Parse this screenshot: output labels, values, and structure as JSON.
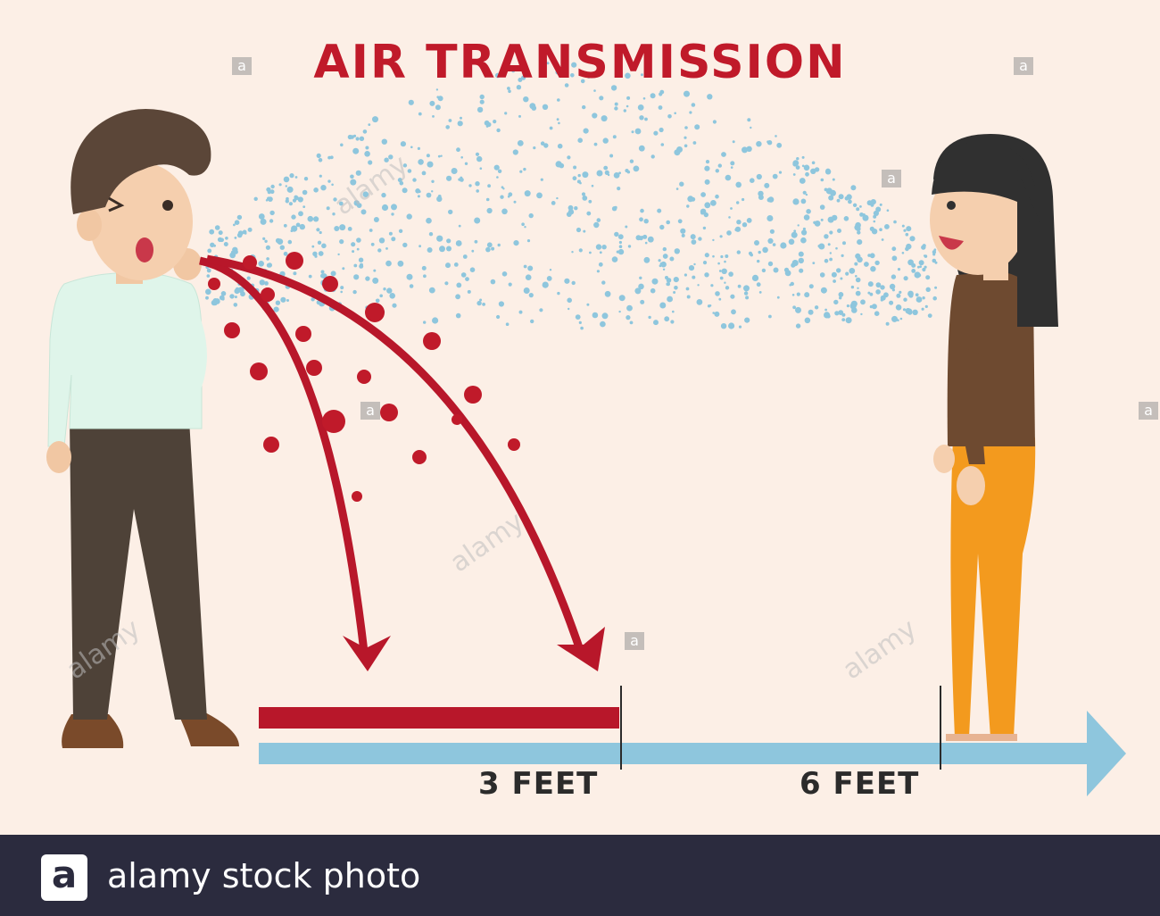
{
  "title": "AIR TRANSMISSION",
  "distance_labels": {
    "near": "3 FEET",
    "far": "6 FEET"
  },
  "colors": {
    "background": "#fcefe6",
    "droplet_red": "#c01a2a",
    "aerosol_blue": "#8ec6dd",
    "footer": "#2b2b3e"
  },
  "watermark": {
    "mark": "a",
    "text": "alamy"
  },
  "footer": {
    "logo": "a",
    "text": "alamy stock photo"
  }
}
